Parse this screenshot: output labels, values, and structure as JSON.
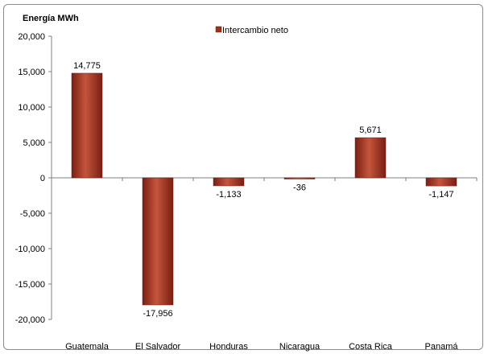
{
  "chart_data": {
    "type": "bar",
    "ylabel": "Energía MWh",
    "categories": [
      "Guatemala",
      "El Salvador",
      "Honduras",
      "Nicaragua",
      "Costa Rica",
      "Panamá"
    ],
    "series": [
      {
        "name": "Intercambio neto",
        "values": [
          14775,
          -17956,
          -1133,
          -36,
          5671,
          -1147
        ]
      }
    ],
    "data_labels": [
      "14,775",
      "-17,956",
      "-1,133",
      "-36",
      "5,671",
      "-1,147"
    ],
    "yticks": [
      "20,000",
      "15,000",
      "10,000",
      "5,000",
      "0",
      "-5,000",
      "-10,000",
      "-15,000",
      "-20,000"
    ],
    "ytick_values": [
      20000,
      15000,
      10000,
      5000,
      0,
      -5000,
      -10000,
      -15000,
      -20000
    ],
    "ylim": [
      -20000,
      20000
    ],
    "grid": false,
    "legend_position": "top-center",
    "colors": {
      "bar_dark": "#7a1e12",
      "bar_mid": "#b03a22",
      "bar_light": "#c4553b"
    }
  }
}
